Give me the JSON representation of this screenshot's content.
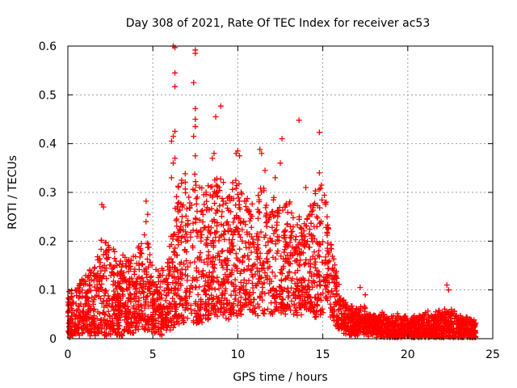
{
  "chart_data": {
    "type": "scatter",
    "title": "Day 308 of 2021, Rate Of TEC Index for receiver ac53",
    "xlabel": "GPS time / hours",
    "ylabel": "ROTI / TECUs",
    "xlim": [
      0,
      25
    ],
    "ylim": [
      0,
      0.6
    ],
    "xticks": [
      0,
      5,
      10,
      15,
      20,
      25
    ],
    "yticks": [
      0,
      0.1,
      0.2,
      0.3,
      0.4,
      0.5,
      0.6
    ],
    "xtick_labels": [
      "0",
      "5",
      "10",
      "15",
      "20",
      "25"
    ],
    "ytick_labels": [
      "0",
      "0.1",
      "0.2",
      "0.3",
      "0.4",
      "0.5",
      "0.6"
    ],
    "grid": true,
    "marker": "+",
    "color": "#ff0000",
    "series": [
      {
        "name": "ROTI",
        "x": [
          6.2,
          6.3,
          7.5,
          7.5,
          7.4,
          6.3,
          6.3,
          9.0,
          7.5,
          13.6,
          14.8,
          7.5,
          8.7,
          7.5,
          12.6,
          6.3,
          6.2,
          6.1,
          7.4,
          11.3,
          10.0,
          9.9,
          10.1,
          7.5,
          8.6,
          8.5,
          11.4,
          12.5,
          6.3,
          14.8,
          6.2,
          2.0,
          2.1,
          4.6,
          4.7,
          4.6,
          17.2,
          17.5,
          22.3,
          22.4,
          6.1,
          8.9,
          9.7,
          11.6,
          12.2,
          14.0,
          15.2
        ],
        "y": [
          0.6,
          0.597,
          0.592,
          0.585,
          0.525,
          0.545,
          0.517,
          0.477,
          0.472,
          0.448,
          0.423,
          0.45,
          0.455,
          0.435,
          0.41,
          0.425,
          0.415,
          0.405,
          0.415,
          0.388,
          0.385,
          0.38,
          0.375,
          0.375,
          0.38,
          0.37,
          0.38,
          0.36,
          0.37,
          0.34,
          0.36,
          0.275,
          0.27,
          0.282,
          0.255,
          0.24,
          0.105,
          0.09,
          0.11,
          0.1,
          0.33,
          0.31,
          0.32,
          0.345,
          0.33,
          0.31,
          0.28
        ]
      }
    ],
    "density_profile": {
      "hours": [
        0,
        0.5,
        1,
        1.5,
        2,
        2.5,
        3,
        3.5,
        4,
        4.5,
        5,
        5.5,
        6,
        6.5,
        7,
        7.5,
        8,
        8.5,
        9,
        9.5,
        10,
        10.5,
        11,
        11.5,
        12,
        12.5,
        13,
        13.5,
        14,
        14.5,
        15,
        15.5,
        16,
        16.5,
        17,
        17.5,
        18,
        18.5,
        19,
        19.5,
        20,
        20.5,
        21,
        21.5,
        22,
        22.5,
        23,
        23.5,
        24
      ],
      "lower_roti": [
        0.005,
        0.01,
        0.01,
        0.01,
        0.01,
        0.01,
        0.01,
        0.01,
        0.02,
        0.02,
        0.02,
        0.01,
        0.02,
        0.03,
        0.04,
        0.03,
        0.04,
        0.05,
        0.05,
        0.04,
        0.05,
        0.06,
        0.05,
        0.05,
        0.05,
        0.06,
        0.05,
        0.05,
        0.06,
        0.05,
        0.05,
        0.04,
        0.02,
        0.01,
        0.01,
        0.01,
        0.01,
        0.005,
        0.005,
        0.005,
        0.005,
        0.005,
        0.005,
        0.005,
        0.005,
        0.005,
        0.005,
        0.005,
        0.005
      ],
      "upper_roti": [
        0.09,
        0.11,
        0.13,
        0.14,
        0.21,
        0.2,
        0.16,
        0.17,
        0.17,
        0.23,
        0.15,
        0.14,
        0.2,
        0.32,
        0.34,
        0.35,
        0.3,
        0.32,
        0.33,
        0.3,
        0.33,
        0.31,
        0.3,
        0.31,
        0.3,
        0.27,
        0.29,
        0.26,
        0.25,
        0.3,
        0.33,
        0.2,
        0.1,
        0.07,
        0.065,
        0.06,
        0.05,
        0.05,
        0.05,
        0.045,
        0.04,
        0.045,
        0.05,
        0.05,
        0.055,
        0.06,
        0.05,
        0.04,
        0.035
      ]
    }
  }
}
